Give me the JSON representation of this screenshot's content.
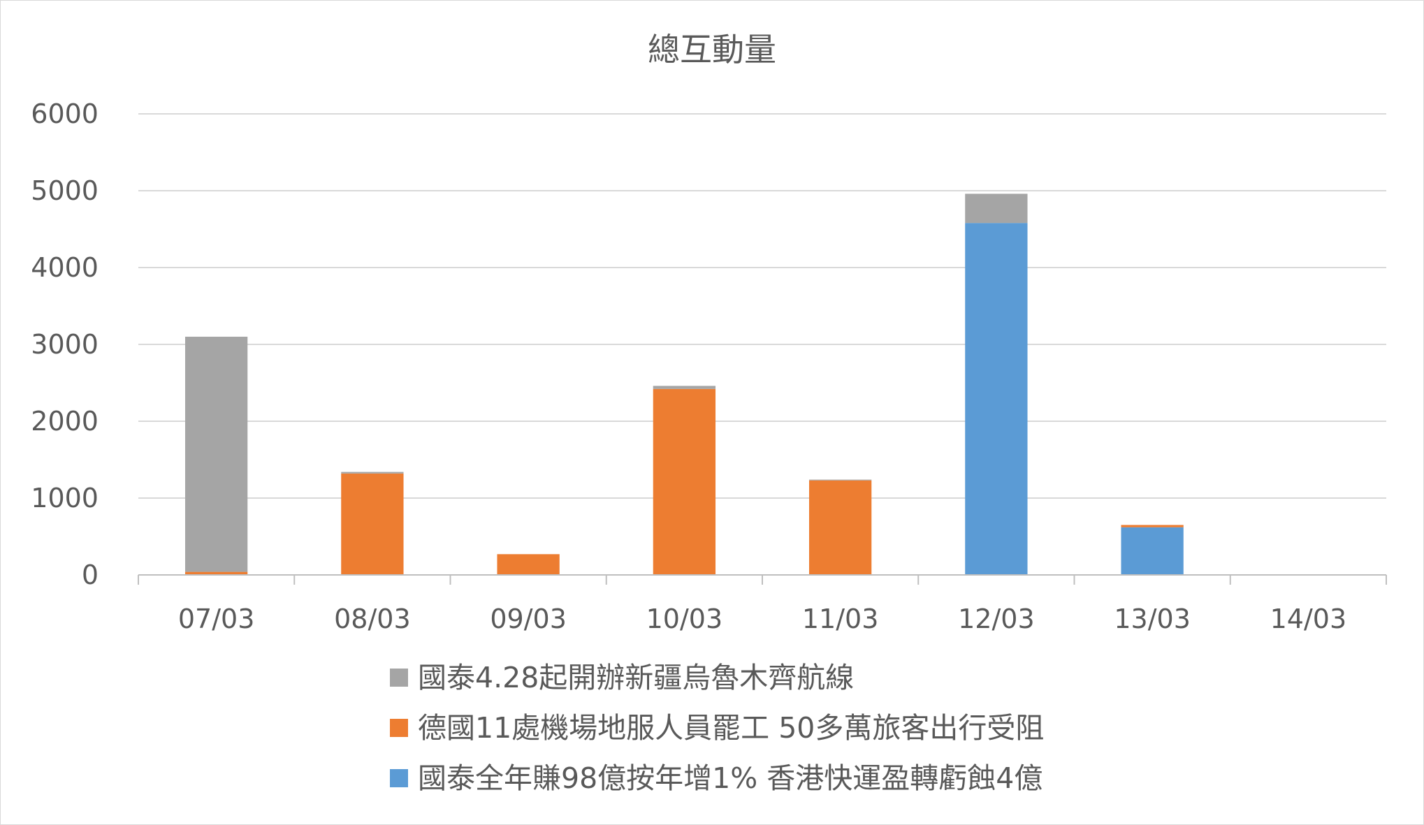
{
  "chart_data": {
    "type": "bar",
    "stacked": true,
    "title": "總互動量",
    "categories": [
      "07/03",
      "08/03",
      "09/03",
      "10/03",
      "11/03",
      "12/03",
      "13/03",
      "14/03"
    ],
    "ylim": [
      0,
      6000
    ],
    "yticks": [
      0,
      1000,
      2000,
      3000,
      4000,
      5000,
      6000
    ],
    "grid": true,
    "legend_position": "bottom",
    "series": [
      {
        "name": "國泰全年賺98億按年增1% 香港快運盈轉虧蝕4億",
        "color": "#5b9bd5",
        "values": [
          0,
          0,
          0,
          0,
          0,
          4580,
          620,
          0
        ]
      },
      {
        "name": "德國11處機場地服人員罷工 50多萬旅客出行受阻",
        "color": "#ed7d31",
        "values": [
          40,
          1320,
          270,
          2420,
          1230,
          0,
          30,
          0
        ]
      },
      {
        "name": "國泰4.28起開辦新疆烏魯木齊航線",
        "color": "#a5a5a5",
        "values": [
          3060,
          20,
          0,
          40,
          10,
          380,
          0,
          0
        ]
      }
    ]
  }
}
